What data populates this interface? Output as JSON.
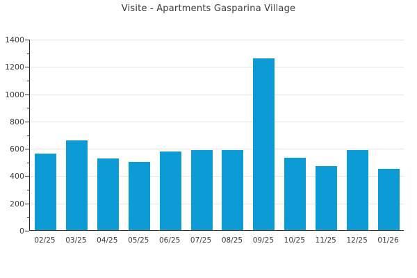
{
  "title": "Visite - Apartments Gasparina Village",
  "colors": {
    "bar": "#0d9bd5",
    "axis": "#262626",
    "grid": "#e4e4e4",
    "text": "#3a3a3a",
    "background": "#ffffff"
  },
  "chart_data": {
    "type": "bar",
    "title": "Visite - Apartments Gasparina Village",
    "categories": [
      "02/25",
      "03/25",
      "04/25",
      "05/25",
      "06/25",
      "07/25",
      "08/25",
      "09/25",
      "10/25",
      "11/25",
      "12/25",
      "01/26"
    ],
    "values": [
      560,
      655,
      525,
      500,
      575,
      585,
      585,
      1255,
      530,
      470,
      585,
      450
    ],
    "xlabel": "",
    "ylabel": "",
    "ylim": [
      0,
      1400
    ],
    "yticks": [
      0,
      200,
      400,
      600,
      800,
      1000,
      1200,
      1400
    ],
    "y_minor_step": 100,
    "grid": "horizontal-major-only",
    "legend": "none",
    "bar_color": "#0d9bd5"
  }
}
